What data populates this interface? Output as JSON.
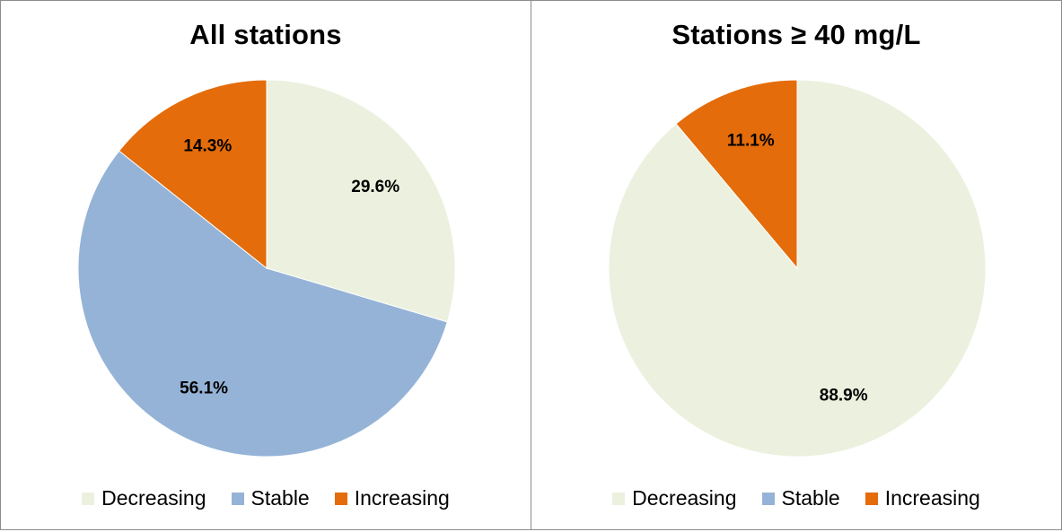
{
  "chart_data": [
    {
      "type": "pie",
      "title": "All stations",
      "legend_position": "bottom",
      "categories": [
        "Decreasing",
        "Stable",
        "Increasing"
      ],
      "values": [
        29.6,
        56.1,
        14.3
      ],
      "labels": [
        "29.6%",
        "56.1%",
        "14.3%"
      ],
      "colors": [
        "#ebf1de",
        "#95b3d7",
        "#e46c0a"
      ]
    },
    {
      "type": "pie",
      "title": "Stations ≥ 40 mg/L",
      "legend_position": "bottom",
      "categories": [
        "Decreasing",
        "Stable",
        "Increasing"
      ],
      "values": [
        88.9,
        0,
        11.1
      ],
      "labels": [
        "88.9%",
        "",
        "11.1%"
      ],
      "colors": [
        "#ebf1de",
        "#95b3d7",
        "#e46c0a"
      ]
    }
  ]
}
